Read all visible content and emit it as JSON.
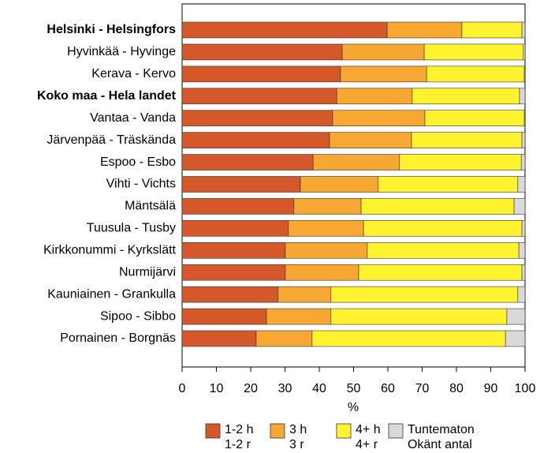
{
  "chart_data": {
    "type": "stacked_barh",
    "x_label": "%",
    "categories": [
      "Helsinki - Helsingfors",
      "Hyvinkää - Hyvinge",
      "Kerava - Kervo",
      "Koko maa - Hela landet",
      "Vantaa - Vanda",
      "Järvenpää - Träskända",
      "Espoo - Esbo",
      "Vihti - Vichts",
      "Mäntsälä",
      "Tuusula - Tusby",
      "Kirkkonummi - Kyrkslätt",
      "Nurmijärvi",
      "Kauniainen - Grankulla",
      "Sipoo - Sibbo",
      "Pornainen - Borgnäs"
    ],
    "bold_categories": [
      0,
      3
    ],
    "series": [
      {
        "name": "1-2 h",
        "name2": "1-2 r",
        "color": "#d4582a",
        "values": [
          59.8,
          46.7,
          46.2,
          45.1,
          43.9,
          43.0,
          38.2,
          34.5,
          32.6,
          31.0,
          30.1,
          30.1,
          28.0,
          24.6,
          21.6
        ]
      },
      {
        "name": "3 h",
        "name2": "3 r",
        "color": "#f7a833",
        "values": [
          21.8,
          23.9,
          25.1,
          22.0,
          26.9,
          23.9,
          25.2,
          22.7,
          19.6,
          21.9,
          23.9,
          21.4,
          15.4,
          18.8,
          16.3
        ]
      },
      {
        "name": "4+ h",
        "name2": "4+ r",
        "color": "#fff22e",
        "values": [
          17.5,
          28.9,
          28.5,
          31.3,
          29.0,
          32.2,
          35.5,
          40.7,
          44.6,
          46.2,
          44.2,
          47.6,
          54.5,
          51.3,
          56.4
        ]
      },
      {
        "name": "Tuntematon",
        "name2": "Okänt antal",
        "color": "#d9d9d9",
        "values": [
          0.9,
          0.5,
          0.2,
          1.6,
          0.2,
          0.9,
          1.1,
          2.1,
          3.2,
          0.9,
          1.8,
          0.9,
          2.1,
          5.3,
          5.7
        ]
      }
    ],
    "xlim": [
      0,
      100
    ],
    "xticks": [
      0,
      10,
      20,
      30,
      40,
      50,
      60,
      70,
      80,
      90,
      100
    ]
  }
}
